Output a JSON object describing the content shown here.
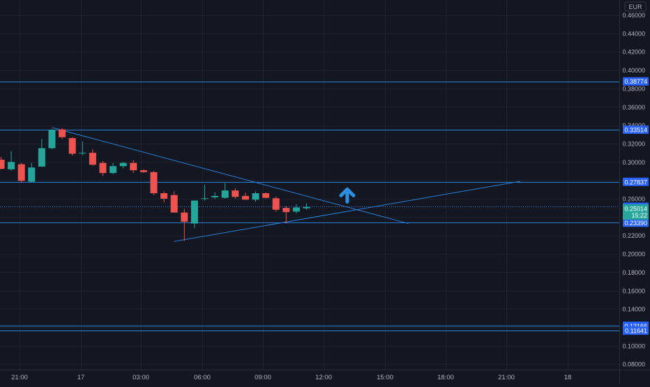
{
  "chart_data": {
    "type": "candlestick",
    "currency": "EUR",
    "ylim": [
      0.07,
      0.466
    ],
    "yticks": [
      "0.46000",
      "0.44000",
      "0.42000",
      "0.40000",
      "0.38000",
      "0.36000",
      "0.34000",
      "0.32000",
      "0.30000",
      "0.28000",
      "0.26000",
      "0.24000",
      "0.22000",
      "0.20000",
      "0.18000",
      "0.16000",
      "0.14000",
      "0.12000",
      "0.10000",
      "0.08000"
    ],
    "xticks": [
      "21:00",
      "17",
      "03:00",
      "06:00",
      "09:00",
      "12:00",
      "15:00",
      "18:00",
      "21:00",
      "18"
    ],
    "candles": [
      {
        "o": 0.3025,
        "h": 0.3055,
        "l": 0.292,
        "c": 0.2925
      },
      {
        "o": 0.292,
        "h": 0.312,
        "l": 0.2905,
        "c": 0.3
      },
      {
        "o": 0.2975,
        "h": 0.299,
        "l": 0.2775,
        "c": 0.2795
      },
      {
        "o": 0.2785,
        "h": 0.299,
        "l": 0.278,
        "c": 0.294
      },
      {
        "o": 0.295,
        "h": 0.325,
        "l": 0.2945,
        "c": 0.315
      },
      {
        "o": 0.315,
        "h": 0.336,
        "l": 0.314,
        "c": 0.335
      },
      {
        "o": 0.3355,
        "h": 0.337,
        "l": 0.325,
        "c": 0.327
      },
      {
        "o": 0.326,
        "h": 0.327,
        "l": 0.307,
        "c": 0.309
      },
      {
        "o": 0.3095,
        "h": 0.3225,
        "l": 0.3075,
        "c": 0.31
      },
      {
        "o": 0.31,
        "h": 0.314,
        "l": 0.296,
        "c": 0.297
      },
      {
        "o": 0.299,
        "h": 0.301,
        "l": 0.285,
        "c": 0.288
      },
      {
        "o": 0.288,
        "h": 0.299,
        "l": 0.2865,
        "c": 0.2955
      },
      {
        "o": 0.2955,
        "h": 0.3,
        "l": 0.293,
        "c": 0.299
      },
      {
        "o": 0.299,
        "h": 0.302,
        "l": 0.288,
        "c": 0.291
      },
      {
        "o": 0.291,
        "h": 0.292,
        "l": 0.288,
        "c": 0.289
      },
      {
        "o": 0.289,
        "h": 0.29,
        "l": 0.264,
        "c": 0.266
      },
      {
        "o": 0.266,
        "h": 0.268,
        "l": 0.256,
        "c": 0.26
      },
      {
        "o": 0.264,
        "h": 0.268,
        "l": 0.245,
        "c": 0.245
      },
      {
        "o": 0.245,
        "h": 0.249,
        "l": 0.214,
        "c": 0.235
      },
      {
        "o": 0.233,
        "h": 0.258,
        "l": 0.228,
        "c": 0.258
      },
      {
        "o": 0.26,
        "h": 0.275,
        "l": 0.258,
        "c": 0.2605
      },
      {
        "o": 0.2615,
        "h": 0.267,
        "l": 0.26,
        "c": 0.263
      },
      {
        "o": 0.261,
        "h": 0.277,
        "l": 0.26,
        "c": 0.269
      },
      {
        "o": 0.269,
        "h": 0.2715,
        "l": 0.26,
        "c": 0.262
      },
      {
        "o": 0.263,
        "h": 0.2665,
        "l": 0.259,
        "c": 0.259
      },
      {
        "o": 0.259,
        "h": 0.268,
        "l": 0.257,
        "c": 0.266
      },
      {
        "o": 0.266,
        "h": 0.267,
        "l": 0.2605,
        "c": 0.261
      },
      {
        "o": 0.2605,
        "h": 0.2625,
        "l": 0.246,
        "c": 0.248
      },
      {
        "o": 0.25,
        "h": 0.252,
        "l": 0.233,
        "c": 0.2455
      },
      {
        "o": 0.246,
        "h": 0.254,
        "l": 0.244,
        "c": 0.2505
      },
      {
        "o": 0.2495,
        "h": 0.255,
        "l": 0.248,
        "c": 0.251
      }
    ],
    "price_lines": [
      {
        "label": "0.38774",
        "value": 0.38774,
        "style": "solid"
      },
      {
        "label": "0.33514",
        "value": 0.33514,
        "style": "solid"
      },
      {
        "label": "0.27837",
        "value": 0.27837,
        "style": "solid"
      },
      {
        "label": "0.25129",
        "value": 0.25129,
        "style": "dotted"
      },
      {
        "label": "0.23390",
        "value": 0.2339,
        "style": "solid"
      },
      {
        "label": "0.12166",
        "value": 0.12166,
        "style": "solid"
      },
      {
        "label": "0.11641",
        "value": 0.11641,
        "style": "solid"
      }
    ],
    "last_price": {
      "value": 0.25014,
      "label": "0.25014",
      "countdown": "15:22"
    },
    "trendlines": [
      {
        "from": [
          5,
          0.3375
        ],
        "to": [
          40,
          0.233
        ]
      },
      {
        "from": [
          17,
          0.2135
        ],
        "to": [
          51,
          0.279
        ]
      }
    ],
    "annotation": {
      "type": "arrow-up",
      "index": 34,
      "value": 0.2665
    },
    "colors": {
      "up": "#26a69a",
      "down": "#ef5350",
      "line": "#2a7fd6",
      "bg": "#131722",
      "grid": "#1e222d",
      "text": "#b2b5be",
      "label_bg": "#2962ff"
    }
  }
}
